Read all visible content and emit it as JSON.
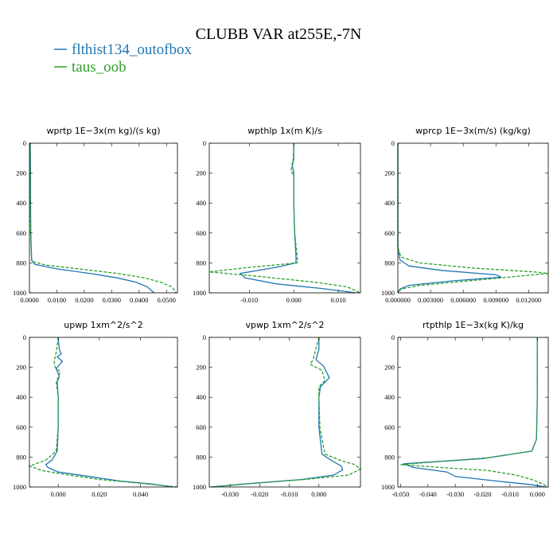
{
  "figure": {
    "title": "CLUBB VAR at255E,-7N",
    "legend": [
      {
        "label": "flthist134_outofbox",
        "color": "#1f77b4",
        "dash": "solid"
      },
      {
        "label": "taus_oob",
        "color": "#2ca02c",
        "dash": "dashed"
      }
    ]
  },
  "chart_data": [
    {
      "type": "line",
      "title": "wprtp  1E−3x(m kg)/(s kg)",
      "xlim": [
        0,
        0.054
      ],
      "ylim": [
        1000,
        0
      ],
      "xticks": [
        0,
        0.01,
        0.02,
        0.03,
        0.04,
        0.05
      ],
      "xtick_labels": [
        "0.0000",
        "0.0100",
        "0.0200",
        "0.0300",
        "0.0400",
        "0.0500"
      ],
      "yticks": [
        0,
        200,
        400,
        600,
        800,
        1000
      ],
      "series": [
        {
          "name": "flthist134_outofbox",
          "points": [
            [
              0.0003,
              0
            ],
            [
              0.0004,
              200
            ],
            [
              0.0004,
              400
            ],
            [
              0.0005,
              600
            ],
            [
              0.0008,
              780
            ],
            [
              0.002,
              810
            ],
            [
              0.01,
              840
            ],
            [
              0.022,
              870
            ],
            [
              0.032,
              900
            ],
            [
              0.039,
              930
            ],
            [
              0.043,
              960
            ],
            [
              0.0455,
              1000
            ]
          ]
        },
        {
          "name": "taus_oob",
          "points": [
            [
              0.0002,
              0
            ],
            [
              0.0003,
              200
            ],
            [
              0.0003,
              400
            ],
            [
              0.0004,
              600
            ],
            [
              0.0008,
              790
            ],
            [
              0.006,
              815
            ],
            [
              0.018,
              840
            ],
            [
              0.032,
              870
            ],
            [
              0.042,
              900
            ],
            [
              0.048,
              930
            ],
            [
              0.052,
              960
            ],
            [
              0.0535,
              1000
            ]
          ]
        }
      ]
    },
    {
      "type": "line",
      "title": "wpthlp  1x(m K)/s",
      "xlim": [
        -0.019,
        0.015
      ],
      "ylim": [
        1000,
        0
      ],
      "xticks": [
        -0.01,
        0,
        0.01
      ],
      "xtick_labels": [
        "-0.010",
        "0.000",
        "0.010"
      ],
      "yticks": [
        0,
        200,
        400,
        600,
        800,
        1000
      ],
      "series": [
        {
          "name": "flthist134_outofbox",
          "points": [
            [
              0,
              0
            ],
            [
              0,
              100
            ],
            [
              -0.0003,
              150
            ],
            [
              0,
              200
            ],
            [
              0,
              400
            ],
            [
              0.0002,
              600
            ],
            [
              0.0005,
              760
            ],
            [
              0.0005,
              800
            ],
            [
              -0.004,
              830
            ],
            [
              -0.012,
              870
            ],
            [
              -0.011,
              900
            ],
            [
              -0.004,
              940
            ],
            [
              0.006,
              970
            ],
            [
              0.014,
              1000
            ]
          ]
        },
        {
          "name": "taus_oob",
          "points": [
            [
              0,
              0
            ],
            [
              -0.0001,
              100
            ],
            [
              -0.0006,
              180
            ],
            [
              0,
              220
            ],
            [
              0,
              400
            ],
            [
              0.0002,
              600
            ],
            [
              0.0008,
              760
            ],
            [
              0.0008,
              800
            ],
            [
              -0.01,
              830
            ],
            [
              -0.019,
              860
            ],
            [
              -0.008,
              890
            ],
            [
              0.005,
              930
            ],
            [
              0.012,
              960
            ],
            [
              0.015,
              1000
            ]
          ]
        }
      ]
    },
    {
      "type": "line",
      "title": "wprcp  1E−3x(m/s) (kg/kg)",
      "xlim": [
        0,
        0.0138
      ],
      "ylim": [
        1000,
        0
      ],
      "xticks": [
        0,
        0.003,
        0.006,
        0.009,
        0.012
      ],
      "xtick_labels": [
        "0.000000",
        "0.003000",
        "0.006000",
        "0.009000",
        "0.012000"
      ],
      "yticks": [
        0,
        200,
        400,
        600,
        800,
        1000
      ],
      "series": [
        {
          "name": "flthist134_outofbox",
          "points": [
            [
              0,
              0
            ],
            [
              0,
              700
            ],
            [
              0.0002,
              780
            ],
            [
              0.001,
              820
            ],
            [
              0.004,
              850
            ],
            [
              0.009,
              880
            ],
            [
              0.0095,
              895
            ],
            [
              0.005,
              920
            ],
            [
              0.001,
              950
            ],
            [
              0.0002,
              975
            ],
            [
              0,
              1000
            ]
          ]
        },
        {
          "name": "taus_oob",
          "points": [
            [
              0,
              0
            ],
            [
              0,
              700
            ],
            [
              0.0003,
              760
            ],
            [
              0.002,
              800
            ],
            [
              0.007,
              835
            ],
            [
              0.0125,
              860
            ],
            [
              0.0138,
              870
            ],
            [
              0.008,
              910
            ],
            [
              0.002,
              950
            ],
            [
              0.0003,
              975
            ],
            [
              0,
              1000
            ]
          ]
        }
      ]
    },
    {
      "type": "line",
      "title": "upwp  1xm^2/s^2",
      "xlim": [
        -0.014,
        0.058
      ],
      "ylim": [
        1000,
        0
      ],
      "xticks": [
        0,
        0.02,
        0.04
      ],
      "xtick_labels": [
        "0.000",
        "0.020",
        "0.040"
      ],
      "yticks": [
        0,
        200,
        400,
        600,
        800,
        1000
      ],
      "series": [
        {
          "name": "flthist134_outofbox",
          "points": [
            [
              0,
              0
            ],
            [
              0.0005,
              80
            ],
            [
              0.0015,
              110
            ],
            [
              -0.0005,
              130
            ],
            [
              0.002,
              160
            ],
            [
              -0.001,
              210
            ],
            [
              0.0005,
              260
            ],
            [
              -0.0005,
              300
            ],
            [
              0,
              400
            ],
            [
              0,
              600
            ],
            [
              -0.0005,
              760
            ],
            [
              -0.003,
              820
            ],
            [
              -0.006,
              850
            ],
            [
              -0.005,
              870
            ],
            [
              0,
              900
            ],
            [
              0.015,
              930
            ],
            [
              0.03,
              960
            ],
            [
              0.045,
              980
            ],
            [
              0.056,
              1000
            ]
          ]
        },
        {
          "name": "taus_oob",
          "points": [
            [
              0,
              0
            ],
            [
              -0.001,
              100
            ],
            [
              -0.002,
              160
            ],
            [
              -0.0015,
              200
            ],
            [
              0.001,
              230
            ],
            [
              -0.001,
              300
            ],
            [
              0,
              400
            ],
            [
              0,
              600
            ],
            [
              -0.001,
              760
            ],
            [
              -0.006,
              820
            ],
            [
              -0.014,
              860
            ],
            [
              -0.008,
              890
            ],
            [
              0.005,
              920
            ],
            [
              0.02,
              950
            ],
            [
              0.04,
              975
            ],
            [
              0.058,
              1000
            ]
          ]
        }
      ]
    },
    {
      "type": "line",
      "title": "vpwp  1xm^2/s^2",
      "xlim": [
        -0.037,
        0.014
      ],
      "ylim": [
        1000,
        0
      ],
      "xticks": [
        -0.03,
        -0.02,
        -0.01,
        0
      ],
      "xtick_labels": [
        "-0.030",
        "-0.020",
        "-0.010",
        "0.000"
      ],
      "yticks": [
        0,
        200,
        400,
        600,
        800,
        1000
      ],
      "series": [
        {
          "name": "flthist134_outofbox",
          "points": [
            [
              0,
              0
            ],
            [
              0,
              80
            ],
            [
              -0.001,
              150
            ],
            [
              0.0015,
              190
            ],
            [
              0.0035,
              270
            ],
            [
              0.0005,
              330
            ],
            [
              0,
              400
            ],
            [
              0,
              600
            ],
            [
              0.001,
              780
            ],
            [
              0.004,
              820
            ],
            [
              0.0075,
              860
            ],
            [
              0.008,
              885
            ],
            [
              0.005,
              920
            ],
            [
              -0.006,
              950
            ],
            [
              -0.025,
              980
            ],
            [
              -0.036,
              1000
            ]
          ]
        },
        {
          "name": "taus_oob",
          "points": [
            [
              0,
              0
            ],
            [
              -0.002,
              150
            ],
            [
              -0.003,
              180
            ],
            [
              0.001,
              220
            ],
            [
              0.002,
              290
            ],
            [
              0,
              330
            ],
            [
              0,
              400
            ],
            [
              0.0003,
              600
            ],
            [
              0.002,
              780
            ],
            [
              0.007,
              820
            ],
            [
              0.012,
              850
            ],
            [
              0.014,
              880
            ],
            [
              0.01,
              920
            ],
            [
              -0.005,
              950
            ],
            [
              -0.025,
              980
            ],
            [
              -0.037,
              1000
            ]
          ]
        }
      ]
    },
    {
      "type": "line",
      "title": "rtpthlp  1E−3x(kg K)/kg",
      "xlim": [
        -0.051,
        0.004
      ],
      "ylim": [
        1000,
        0
      ],
      "xticks": [
        -0.05,
        -0.04,
        -0.03,
        -0.02,
        -0.01,
        0
      ],
      "xtick_labels": [
        "-0.050",
        "-0.040",
        "-0.030",
        "-0.020",
        "-0.010",
        "0.000"
      ],
      "yticks": [
        0,
        200,
        400,
        600,
        800,
        1000
      ],
      "series": [
        {
          "name": "flthist134_outofbox",
          "points": [
            [
              0,
              0
            ],
            [
              0,
              400
            ],
            [
              -0.0003,
              680
            ],
            [
              -0.002,
              760
            ],
            [
              -0.02,
              810
            ],
            [
              -0.049,
              845
            ],
            [
              -0.045,
              870
            ],
            [
              -0.033,
              900
            ],
            [
              -0.03,
              930
            ],
            [
              -0.015,
              960
            ],
            [
              -0.002,
              985
            ],
            [
              0.003,
              1000
            ]
          ]
        },
        {
          "name": "taus_oob",
          "points": [
            [
              0,
              0
            ],
            [
              0,
              400
            ],
            [
              -0.0003,
              680
            ],
            [
              -0.002,
              760
            ],
            [
              -0.018,
              805
            ],
            [
              -0.05,
              850
            ],
            [
              -0.035,
              870
            ],
            [
              -0.018,
              890
            ],
            [
              -0.008,
              920
            ],
            [
              -0.002,
              950
            ],
            [
              0.002,
              980
            ],
            [
              0.004,
              1000
            ]
          ]
        }
      ]
    }
  ]
}
